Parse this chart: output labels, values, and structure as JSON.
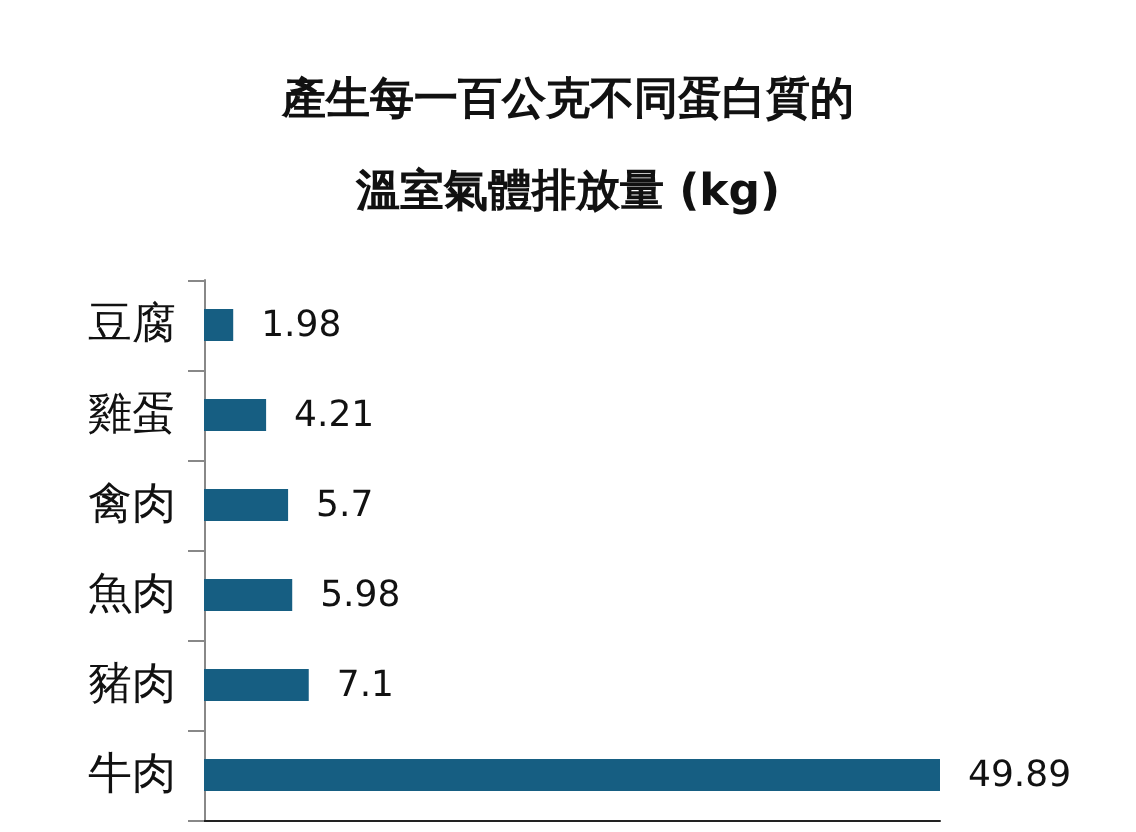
{
  "chart_data": {
    "type": "bar",
    "orientation": "horizontal",
    "title": "產生每一百公克不同蛋白質的溫室氣體排放量 (kg)",
    "categories": [
      "豆腐",
      "雞蛋",
      "禽肉",
      "魚肉",
      "豬肉",
      "牛肉"
    ],
    "values": [
      1.98,
      4.21,
      5.7,
      5.98,
      7.1,
      49.89
    ],
    "color": "#165e82",
    "data_labels": true
  }
}
